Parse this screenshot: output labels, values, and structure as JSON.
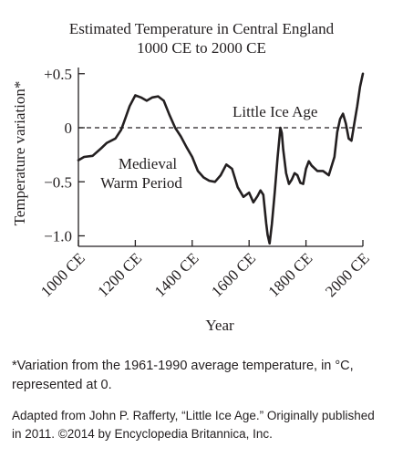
{
  "chart_data": {
    "type": "line",
    "title_line1": "Estimated Temperature in Central England",
    "title_line2": "1000 CE to 2000 CE",
    "xlabel": "Year",
    "ylabel": "Temperature variation*",
    "xlim": [
      1000,
      2000
    ],
    "ylim": [
      -1.05,
      0.55
    ],
    "x_ticks": [
      1000,
      1200,
      1400,
      1600,
      1800,
      2000
    ],
    "x_tick_labels": [
      "1000 CE",
      "1200 CE",
      "1400 CE",
      "1600 CE",
      "1800 CE",
      "2000 CE"
    ],
    "y_ticks": [
      0.5,
      0,
      -0.5,
      -1.0
    ],
    "y_tick_labels": [
      "+0.5",
      "0",
      "−0.5",
      "−1.0"
    ],
    "reference_line": {
      "y": 0,
      "style": "dashed"
    },
    "annotations": [
      {
        "text": "Little Ice Age"
      },
      {
        "text": "Medieval"
      },
      {
        "text": "Warm Period"
      }
    ],
    "series": [
      {
        "x": [
          1000,
          1020,
          1050,
          1080,
          1100,
          1130,
          1150,
          1160,
          1180,
          1200,
          1220,
          1240,
          1260,
          1280,
          1300,
          1320,
          1340,
          1360,
          1380,
          1400,
          1420,
          1440,
          1460,
          1480,
          1500,
          1520,
          1540,
          1560,
          1580,
          1600,
          1615,
          1630,
          1640,
          1650,
          1660,
          1665,
          1672,
          1680,
          1690,
          1700,
          1710,
          1715,
          1720,
          1730,
          1740,
          1750,
          1760,
          1770,
          1780,
          1790,
          1800,
          1810,
          1820,
          1840,
          1860,
          1880,
          1900,
          1910,
          1920,
          1930,
          1940,
          1950,
          1960,
          1970,
          1980,
          1990,
          2000
        ],
        "y": [
          -0.3,
          -0.27,
          -0.26,
          -0.19,
          -0.14,
          -0.1,
          -0.02,
          0.05,
          0.2,
          0.3,
          0.28,
          0.25,
          0.28,
          0.29,
          0.25,
          0.12,
          0.0,
          -0.08,
          -0.18,
          -0.27,
          -0.4,
          -0.46,
          -0.49,
          -0.5,
          -0.44,
          -0.34,
          -0.38,
          -0.55,
          -0.64,
          -0.6,
          -0.69,
          -0.63,
          -0.58,
          -0.62,
          -0.88,
          -0.99,
          -1.07,
          -0.89,
          -0.6,
          -0.28,
          0.0,
          -0.05,
          -0.2,
          -0.42,
          -0.52,
          -0.48,
          -0.42,
          -0.44,
          -0.51,
          -0.52,
          -0.38,
          -0.31,
          -0.35,
          -0.4,
          -0.4,
          -0.44,
          -0.27,
          -0.04,
          0.08,
          0.13,
          0.04,
          -0.1,
          -0.12,
          0.04,
          0.2,
          0.38,
          0.5
        ]
      }
    ]
  },
  "footnote": {
    "line1": "*Variation from the 1961-1990 average temperature, in °C,",
    "line2": "represented at 0."
  },
  "credit": {
    "line1": "Adapted from John P. Rafferty, “Little Ice Age.” Originally published",
    "line2": "in 2011. ©2014 by Encyclopedia Britannica, Inc."
  }
}
